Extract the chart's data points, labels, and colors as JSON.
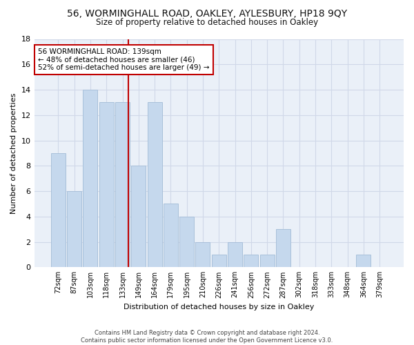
{
  "title": "56, WORMINGHALL ROAD, OAKLEY, AYLESBURY, HP18 9QY",
  "subtitle": "Size of property relative to detached houses in Oakley",
  "xlabel": "Distribution of detached houses by size in Oakley",
  "ylabel": "Number of detached properties",
  "categories": [
    "72sqm",
    "87sqm",
    "103sqm",
    "118sqm",
    "133sqm",
    "149sqm",
    "164sqm",
    "179sqm",
    "195sqm",
    "210sqm",
    "226sqm",
    "241sqm",
    "256sqm",
    "272sqm",
    "287sqm",
    "302sqm",
    "318sqm",
    "333sqm",
    "348sqm",
    "364sqm",
    "379sqm"
  ],
  "values": [
    9,
    6,
    14,
    13,
    13,
    8,
    13,
    5,
    4,
    2,
    1,
    2,
    1,
    1,
    3,
    0,
    0,
    0,
    0,
    1,
    0
  ],
  "bar_color": "#c5d8ed",
  "bar_edgecolor": "#a8c0da",
  "vline_color": "#c00000",
  "annotation_text": "56 WORMINGHALL ROAD: 139sqm\n← 48% of detached houses are smaller (46)\n52% of semi-detached houses are larger (49) →",
  "annotation_box_color": "#ffffff",
  "annotation_box_edgecolor": "#c00000",
  "ylim": [
    0,
    18
  ],
  "yticks": [
    0,
    2,
    4,
    6,
    8,
    10,
    12,
    14,
    16,
    18
  ],
  "grid_color": "#d0d8e8",
  "background_color": "#eaf0f8",
  "footer": "Contains HM Land Registry data © Crown copyright and database right 2024.\nContains public sector information licensed under the Open Government Licence v3.0."
}
